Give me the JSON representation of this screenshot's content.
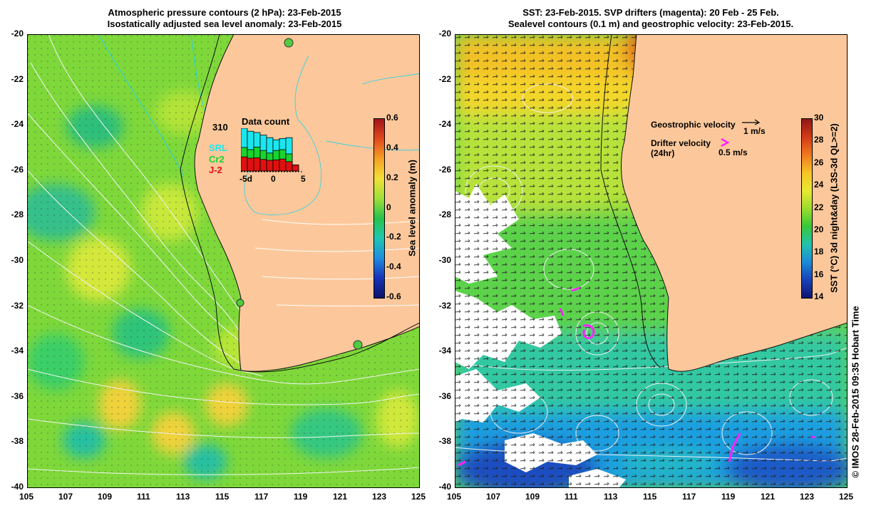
{
  "left_panel": {
    "title_line1": "Atmospheric pressure contours (2 hPa): 23-Feb-2015",
    "title_line2": "Isostatically adjusted sea level anomaly: 23-Feb-2015",
    "colorbar": {
      "label": "Sea level anomaly (m)",
      "ticks": [
        "0.6",
        "0.4",
        "0.2",
        "0",
        "-0.2",
        "-0.4",
        "-0.6"
      ],
      "colors": [
        "#a0131a",
        "#e2481e",
        "#f7a024",
        "#f2e035",
        "#9ee03a",
        "#27c24b",
        "#1fc7b0",
        "#1e8ee0",
        "#1731b8",
        "#0b1468"
      ]
    },
    "data_count": {
      "title": "Data count",
      "max_label": "310",
      "legend": [
        "SRL",
        "Cr2",
        "J-2"
      ],
      "legend_colors": [
        "#19e7f0",
        "#17d42e",
        "#e01010"
      ],
      "x_ticks": [
        "-5d",
        "0",
        "5"
      ],
      "bars": [
        {
          "j2": 0.33,
          "cr2": 0.55,
          "srl": 1.0
        },
        {
          "j2": 0.3,
          "cr2": 0.5,
          "srl": 0.93
        },
        {
          "j2": 0.31,
          "cr2": 0.56,
          "srl": 0.9
        },
        {
          "j2": 0.27,
          "cr2": 0.48,
          "srl": 0.84
        },
        {
          "j2": 0.25,
          "cr2": 0.42,
          "srl": 0.78
        },
        {
          "j2": 0.26,
          "cr2": 0.48,
          "srl": 0.73
        },
        {
          "j2": 0.28,
          "cr2": 0.5,
          "srl": 0.76
        },
        {
          "j2": 0.22,
          "cr2": 0.4,
          "srl": 0.78
        },
        {
          "j2": 0.14,
          "cr2": 0.14,
          "srl": 0.14
        }
      ]
    }
  },
  "right_panel": {
    "title_line1": "SST: 23-Feb-2015. SVP drifters (magenta): 20 Feb - 25 Feb.",
    "title_line2": "Sealevel contours (0.1 m) and geostrophic velocity: 23-Feb-2015.",
    "colorbar": {
      "label": "SST (°C) 3d night&day (L3S-3d QL>=2)",
      "ticks": [
        "30",
        "28",
        "26",
        "24",
        "22",
        "20",
        "18",
        "16",
        "14"
      ],
      "colors": [
        "#8c1818",
        "#d23a18",
        "#f07820",
        "#f6c427",
        "#e7e932",
        "#9edc2e",
        "#38c838",
        "#23c2ad",
        "#1d8ad8",
        "#1742b8",
        "#0d1570"
      ]
    },
    "legend": {
      "geostrophic_label": "Geostrophic velocity",
      "geostrophic_scale": "1 m/s",
      "drifter_label": "Drifter velocity",
      "drifter_sub": "(24hr)",
      "drifter_scale": "0.5 m/s",
      "drifter_color": "#ff22ff"
    }
  },
  "axes": {
    "lat_ticks": [
      "-20",
      "-22",
      "-24",
      "-26",
      "-28",
      "-30",
      "-32",
      "-34",
      "-36",
      "-38",
      "-40"
    ],
    "lon_ticks": [
      "105",
      "107",
      "109",
      "111",
      "113",
      "115",
      "117",
      "119",
      "121",
      "123",
      "125"
    ]
  },
  "credit": "© IMOS 28-Feb-2015 09:35 Hobart Time",
  "land_color": "#fcc89b"
}
